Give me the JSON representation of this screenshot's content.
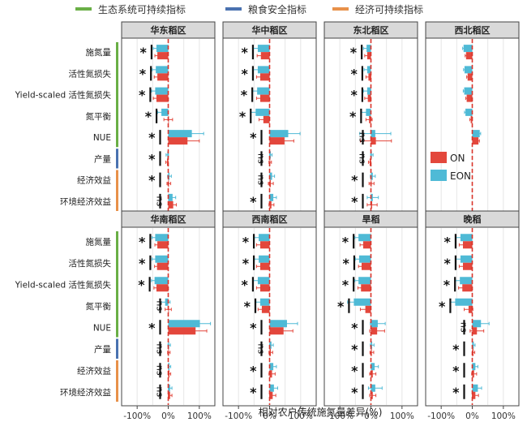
{
  "chart_data": {
    "type": "bar",
    "orientation": "horizontal",
    "xlabel": "相对农户传统施氮量差异(%)",
    "x_ticks": [
      "-100%",
      "0%",
      "100%"
    ],
    "xlim": [
      -150,
      150
    ],
    "legend_top": [
      {
        "label": "生态系统可持续指标",
        "color": "#6aaf46"
      },
      {
        "label": "粮食安全指标",
        "color": "#4a72b0"
      },
      {
        "label": "经济可持续指标",
        "color": "#e8914a"
      }
    ],
    "legend_inset": [
      {
        "label": "ON",
        "color": "#e3473c"
      },
      {
        "label": "EON",
        "color": "#4fbad6"
      }
    ],
    "categories": [
      "施氮量",
      "活性氮损失",
      "Yield-scaled 活性氮损失",
      "氮平衡",
      "NUE",
      "产量",
      "经济效益",
      "环境经济效益"
    ],
    "category_groups": [
      "eco",
      "eco",
      "eco",
      "eco",
      "eco",
      "food",
      "econ",
      "econ"
    ],
    "panels": [
      {
        "title": "华东稻区",
        "on": [
          -35,
          -35,
          -38,
          0,
          62,
          -4,
          2,
          16
        ],
        "on_err": [
          8,
          10,
          10,
          14,
          38,
          4,
          6,
          10
        ],
        "eon": [
          -38,
          -40,
          -42,
          -22,
          76,
          -3,
          4,
          14
        ],
        "eon_err": [
          10,
          12,
          12,
          12,
          38,
          4,
          6,
          10
        ],
        "sig": [
          "*",
          "*",
          "*",
          "*",
          "*",
          "*",
          "*",
          "ns"
        ]
      },
      {
        "title": "华中稻区",
        "on": [
          -28,
          -30,
          -30,
          -20,
          48,
          2,
          4,
          6
        ],
        "on_err": [
          12,
          12,
          12,
          14,
          30,
          4,
          8,
          8
        ],
        "eon": [
          -38,
          -38,
          -40,
          -45,
          60,
          4,
          8,
          12
        ],
        "eon_err": [
          14,
          14,
          14,
          16,
          38,
          4,
          8,
          10
        ],
        "sig": [
          "*",
          "*",
          "*",
          "*",
          "*",
          "ns",
          "ns",
          "*"
        ]
      },
      {
        "title": "东北稻区",
        "on": [
          -12,
          -8,
          -10,
          -6,
          16,
          -4,
          2,
          4
        ],
        "on_err": [
          8,
          8,
          10,
          10,
          50,
          4,
          8,
          16
        ],
        "eon": [
          -14,
          -12,
          -12,
          -16,
          14,
          3,
          6,
          6
        ],
        "eon_err": [
          10,
          10,
          12,
          14,
          50,
          4,
          8,
          18
        ],
        "sig": [
          "*",
          "*",
          "*",
          "*",
          "ns",
          "ns",
          "*",
          "*"
        ]
      },
      {
        "title": "西北稻区",
        "on": [
          -20,
          -15,
          -18,
          -5,
          20,
          null,
          null,
          null
        ],
        "on_err": [
          3,
          3,
          3,
          3,
          3,
          null,
          null,
          null
        ],
        "eon": [
          -28,
          -25,
          -26,
          -22,
          24,
          null,
          null,
          null
        ],
        "eon_err": [
          3,
          3,
          3,
          3,
          3,
          null,
          null,
          null
        ],
        "sig": [
          "",
          "",
          "",
          "",
          "",
          "",
          "",
          ""
        ]
      },
      {
        "title": "华南稻区",
        "on": [
          -35,
          -36,
          -38,
          0,
          88,
          2,
          4,
          6
        ],
        "on_err": [
          8,
          8,
          8,
          10,
          36,
          4,
          4,
          6
        ],
        "eon": [
          -42,
          -42,
          -44,
          -10,
          102,
          3,
          4,
          6
        ],
        "eon_err": [
          10,
          10,
          10,
          16,
          34,
          4,
          4,
          6
        ],
        "sig": [
          "*",
          "*",
          "*",
          "ns",
          "*",
          "ns",
          "ns",
          "ns"
        ]
      },
      {
        "title": "西南稻区",
        "on": [
          -30,
          -30,
          -30,
          -25,
          45,
          4,
          8,
          10
        ],
        "on_err": [
          12,
          12,
          12,
          12,
          30,
          6,
          10,
          10
        ],
        "eon": [
          -35,
          -35,
          -38,
          -30,
          56,
          6,
          12,
          14
        ],
        "eon_err": [
          14,
          14,
          14,
          14,
          34,
          6,
          10,
          12
        ],
        "sig": [
          "*",
          "*",
          "*",
          "*",
          "*",
          "ns",
          "*",
          "*"
        ]
      },
      {
        "title": "旱稻",
        "on": [
          -25,
          -30,
          -32,
          -18,
          20,
          3,
          6,
          6
        ],
        "on_err": [
          10,
          10,
          10,
          16,
          24,
          6,
          10,
          10
        ],
        "eon": [
          -40,
          -38,
          -40,
          -55,
          22,
          4,
          12,
          14
        ],
        "eon_err": [
          12,
          12,
          12,
          20,
          24,
          6,
          12,
          22
        ],
        "sig": [
          "*",
          "*",
          "*",
          "*",
          "*",
          "*",
          "*",
          "*"
        ]
      },
      {
        "title": "晚稻",
        "on": [
          -30,
          -30,
          -32,
          -12,
          15,
          4,
          6,
          10
        ],
        "on_err": [
          12,
          12,
          12,
          14,
          22,
          4,
          8,
          10
        ],
        "eon": [
          -38,
          -38,
          -40,
          -55,
          28,
          5,
          10,
          18
        ],
        "eon_err": [
          14,
          14,
          14,
          16,
          26,
          4,
          8,
          12
        ],
        "sig": [
          "*",
          "*",
          "*",
          "*",
          "ns",
          "*",
          "*",
          "*"
        ]
      }
    ]
  }
}
